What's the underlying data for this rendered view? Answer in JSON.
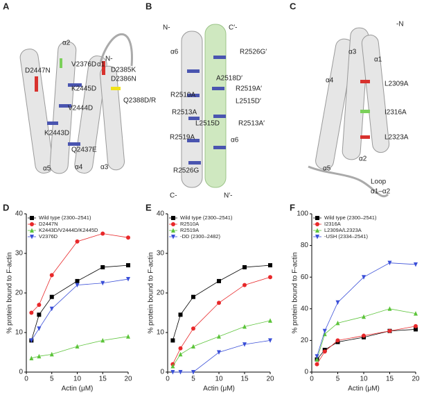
{
  "panels": [
    {
      "letter": "A",
      "labels": [
        "N-",
        "α2",
        "V2376D",
        "α1",
        "D2385K",
        "D2386N",
        "D2447N",
        "K2445D",
        "Q2388D/R",
        "V2444D",
        "K2443D",
        "Q2437E",
        "α5",
        "α4",
        "α3"
      ]
    },
    {
      "letter": "B",
      "labels": [
        "N-",
        "C′-",
        "α6",
        "R2526G′",
        "A2518D′",
        "R2510A",
        "R2519A′",
        "L2515D′",
        "R2513A",
        "L2515D",
        "R2513A′",
        "R2519A",
        "α6",
        "R2526G",
        "C-",
        "N′-"
      ]
    },
    {
      "letter": "C",
      "labels": [
        "-N",
        "α3",
        "α1",
        "α4",
        "L2309A",
        "I2316A",
        "L2323A",
        "α2",
        "α5",
        "Loop",
        "α1–α2"
      ]
    }
  ],
  "chart_data": [
    {
      "type": "line",
      "panel": "D",
      "xlabel": "Actin (μM)",
      "ylabel": "% protein bound to F-actin",
      "x": [
        1,
        2.5,
        5,
        10,
        15,
        20
      ],
      "xlim": [
        0,
        20
      ],
      "xticks": [
        0,
        5,
        10,
        15,
        20
      ],
      "ylim": [
        0,
        40
      ],
      "yticks": [
        0,
        10,
        20,
        30,
        40
      ],
      "series": [
        {
          "name": "Wild type (2300–2541)",
          "color": "#000000",
          "marker": "square",
          "values": [
            8,
            14.5,
            19,
            23,
            26.5,
            27
          ]
        },
        {
          "name": "D2447N",
          "color": "#e8282a",
          "marker": "circle",
          "values": [
            15,
            17,
            24.5,
            33,
            35,
            34
          ]
        },
        {
          "name": "K2443D/V2444D/K2445D",
          "color": "#5cc43a",
          "marker": "triangle-up",
          "values": [
            3.5,
            4,
            4.5,
            6.5,
            8,
            9
          ]
        },
        {
          "name": "V2376D",
          "color": "#3a4fd8",
          "marker": "triangle-down",
          "values": [
            8,
            11,
            16,
            22,
            22.5,
            23.5
          ]
        }
      ]
    },
    {
      "type": "line",
      "panel": "E",
      "xlabel": "Actin (μM)",
      "ylabel": "% protein bound to F-actin",
      "x": [
        1,
        2.5,
        5,
        10,
        15,
        20
      ],
      "xlim": [
        0,
        20
      ],
      "xticks": [
        0,
        5,
        10,
        15,
        20
      ],
      "ylim": [
        0,
        40
      ],
      "yticks": [
        0,
        10,
        20,
        30,
        40
      ],
      "series": [
        {
          "name": "Wild type (2300–2541)",
          "color": "#000000",
          "marker": "square",
          "values": [
            8,
            14.5,
            19,
            23,
            26.5,
            27
          ]
        },
        {
          "name": "R2510A",
          "color": "#e8282a",
          "marker": "circle",
          "values": [
            2,
            6,
            11,
            17.5,
            22,
            24
          ]
        },
        {
          "name": "R2519A",
          "color": "#5cc43a",
          "marker": "triangle-up",
          "values": [
            1.5,
            4.5,
            6.5,
            9,
            11.5,
            13
          ]
        },
        {
          "name": "-DD (2300–2482)",
          "color": "#3a4fd8",
          "marker": "triangle-down",
          "values": [
            0,
            0,
            0,
            5,
            7,
            8
          ]
        }
      ]
    },
    {
      "type": "line",
      "panel": "F",
      "xlabel": "Actin (μM)",
      "ylabel": "% protein bound to F-actin",
      "x": [
        1,
        2.5,
        5,
        10,
        15,
        20
      ],
      "xlim": [
        0,
        20
      ],
      "xticks": [
        0,
        5,
        10,
        15,
        20
      ],
      "ylim": [
        0,
        100
      ],
      "yticks": [
        0,
        20,
        40,
        60,
        80,
        100
      ],
      "series": [
        {
          "name": "Wild type (2300–2541)",
          "color": "#000000",
          "marker": "square",
          "values": [
            8,
            14,
            19,
            22,
            26,
            27
          ]
        },
        {
          "name": "I2316A",
          "color": "#e8282a",
          "marker": "circle",
          "values": [
            5,
            13,
            20,
            23,
            26,
            29
          ]
        },
        {
          "name": "L2309A/L2323A",
          "color": "#5cc43a",
          "marker": "triangle-up",
          "values": [
            8,
            24,
            31,
            35,
            40,
            37
          ]
        },
        {
          "name": "-USH (2334–2541)",
          "color": "#3a4fd8",
          "marker": "triangle-down",
          "values": [
            10,
            26,
            44,
            60,
            69,
            68
          ]
        }
      ]
    }
  ]
}
